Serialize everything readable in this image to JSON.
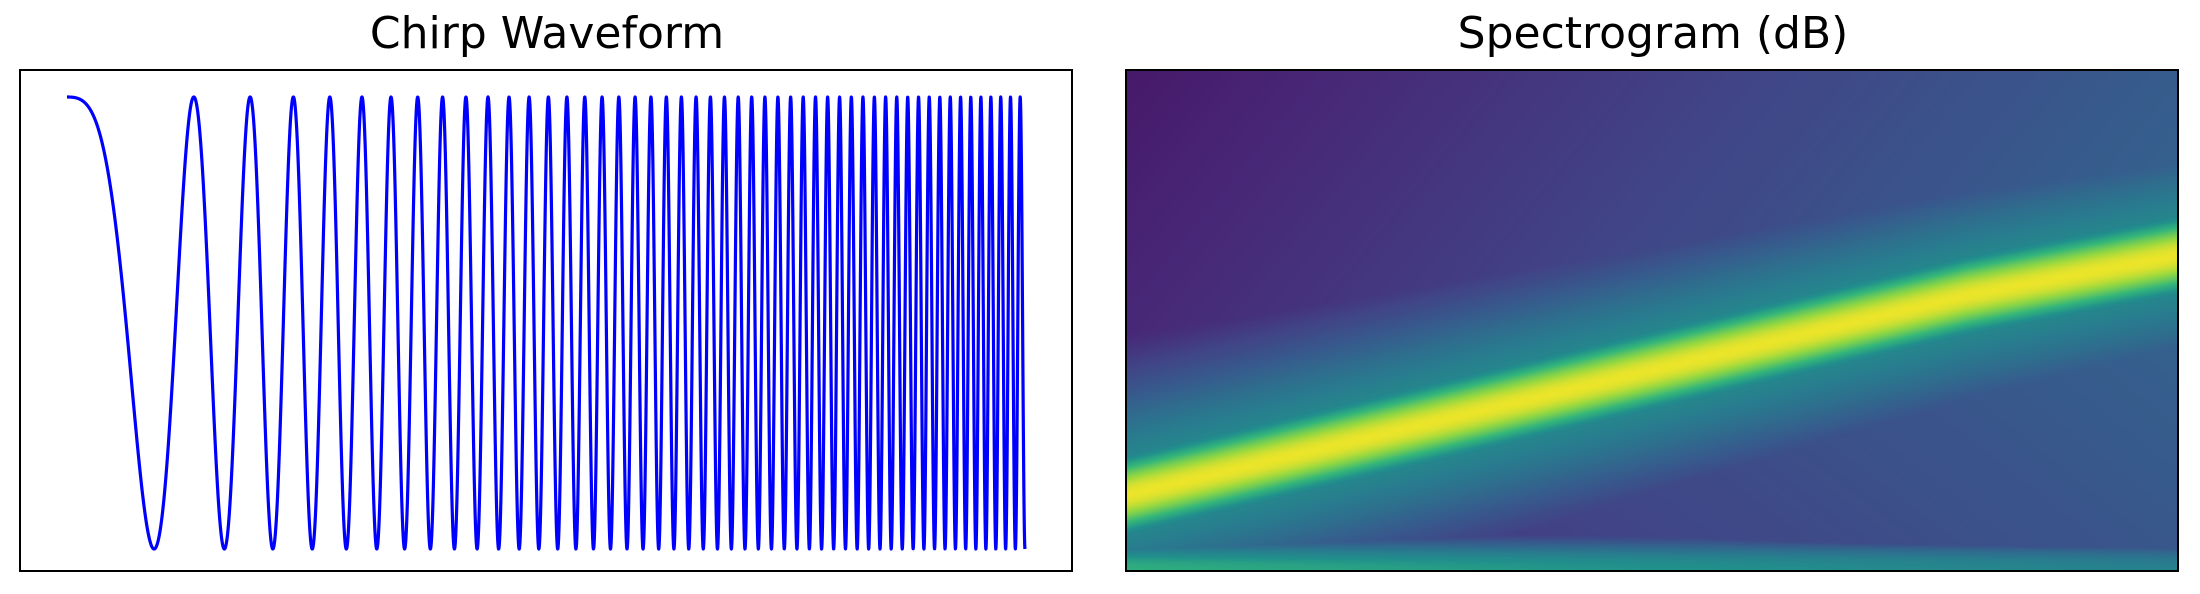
{
  "chart_data": [
    {
      "type": "line",
      "title": "Chirp Waveform",
      "xlabel": "",
      "ylabel": "",
      "axes_ticks": "hidden",
      "grid": false,
      "signal": {
        "function": "cos",
        "t_range": [
          0,
          1
        ],
        "f0_hz": 1,
        "f1_hz": 100,
        "method": "linear"
      },
      "ylim": [
        -1.05,
        1.05
      ],
      "series": [
        {
          "color": "#0000ff"
        }
      ]
    },
    {
      "type": "heatmap",
      "title": "Spectrogram (dB)",
      "xlabel": "",
      "ylabel": "",
      "axes_ticks": "hidden",
      "colormap": "viridis",
      "interpolation": "smooth",
      "description_of_values": "bright diagonal ridge rising from bottom-left to upper-right",
      "ridge": {
        "x": [
          0.0,
          0.2,
          0.4,
          0.6,
          0.8,
          1.0
        ],
        "y_from_bottom": [
          0.15,
          0.25,
          0.35,
          0.45,
          0.55,
          0.63
        ]
      }
    }
  ]
}
